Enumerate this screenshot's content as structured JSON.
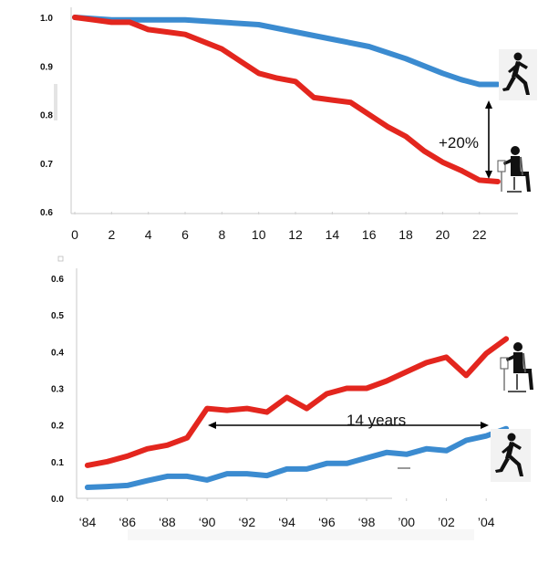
{
  "chart_data": [
    {
      "type": "line",
      "x_ticks": [
        "0",
        "2",
        "4",
        "6",
        "8",
        "10",
        "12",
        "14",
        "16",
        "18",
        "20",
        "22"
      ],
      "y_ticks": [
        "1.0",
        "0.9",
        "0.8",
        "0.7",
        "0.6"
      ],
      "xlim": [
        0,
        23.5
      ],
      "ylim": [
        0.6,
        1.02
      ],
      "grid": false,
      "series": [
        {
          "color": "#3b8bd0",
          "x": [
            0,
            2,
            4,
            6,
            8,
            10,
            12,
            14,
            16,
            18,
            20,
            21,
            22,
            23
          ],
          "y": [
            1.0,
            0.995,
            0.995,
            0.995,
            0.99,
            0.985,
            0.97,
            0.955,
            0.94,
            0.915,
            0.885,
            0.872,
            0.862,
            0.862
          ]
        },
        {
          "color": "#e3261e",
          "x": [
            0,
            1,
            2,
            3,
            4,
            5,
            6,
            7,
            8,
            9,
            10,
            11,
            12,
            13,
            14,
            15,
            16,
            17,
            18,
            19,
            20,
            21,
            22,
            23
          ],
          "y": [
            1.0,
            0.995,
            0.99,
            0.99,
            0.975,
            0.97,
            0.965,
            0.95,
            0.935,
            0.91,
            0.885,
            0.875,
            0.868,
            0.835,
            0.83,
            0.825,
            0.8,
            0.775,
            0.755,
            0.725,
            0.702,
            0.685,
            0.665,
            0.662
          ]
        }
      ],
      "annotations": [
        {
          "text": "+20%",
          "icon": "runner-icon / seated-person-icon"
        }
      ]
    },
    {
      "type": "line",
      "x_ticks": [
        "‘84",
        "‘86",
        "‘88",
        "‘90",
        "‘92",
        "‘94",
        "‘96",
        "‘98",
        "’00",
        "’02",
        "’04"
      ],
      "y_ticks": [
        "0.6",
        "0.5",
        "0.4",
        "0.3",
        "0.2",
        "0.1",
        "0.0"
      ],
      "xlim": [
        1983.5,
        2005.5
      ],
      "ylim": [
        0.0,
        0.6
      ],
      "grid": false,
      "series": [
        {
          "color": "#e3261e",
          "x": [
            1984,
            1985,
            1986,
            1987,
            1988,
            1989,
            1990,
            1991,
            1992,
            1993,
            1994,
            1995,
            1996,
            1997,
            1998,
            1999,
            2000,
            2001,
            2002,
            2003,
            2004,
            2005
          ],
          "y": [
            0.09,
            0.1,
            0.115,
            0.135,
            0.145,
            0.165,
            0.245,
            0.24,
            0.245,
            0.235,
            0.275,
            0.245,
            0.285,
            0.3,
            0.3,
            0.32,
            0.345,
            0.37,
            0.385,
            0.335,
            0.395,
            0.435
          ]
        },
        {
          "color": "#3b8bd0",
          "x": [
            1984,
            1985,
            1986,
            1987,
            1988,
            1989,
            1990,
            1991,
            1992,
            1993,
            1994,
            1995,
            1996,
            1997,
            1998,
            1999,
            2000,
            2001,
            2002,
            2003,
            2004,
            2005
          ],
          "y": [
            0.03,
            0.032,
            0.035,
            0.048,
            0.06,
            0.06,
            0.05,
            0.067,
            0.067,
            0.062,
            0.08,
            0.08,
            0.095,
            0.095,
            0.11,
            0.125,
            0.12,
            0.135,
            0.13,
            0.158,
            0.17,
            0.19
          ]
        }
      ],
      "annotations": [
        {
          "text": "14 years",
          "icon": "seated-person-icon / runner-icon"
        }
      ]
    }
  ]
}
